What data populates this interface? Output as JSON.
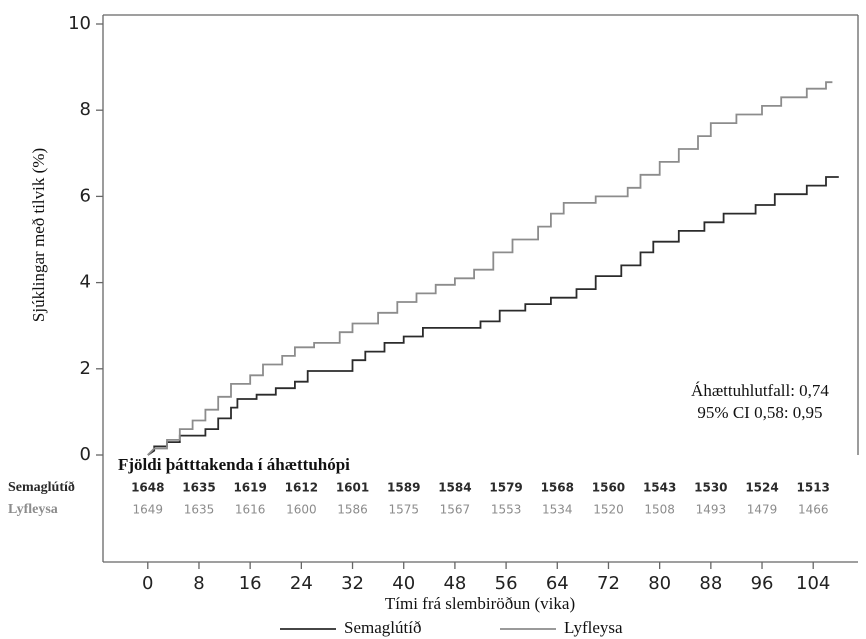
{
  "chart_data": {
    "type": "line",
    "y_label": "Sjúklingar með tilvik (%)",
    "x_label": "Tími frá slembiröðun (vika)",
    "xlim": [
      -7,
      111
    ],
    "ylim": [
      0,
      10
    ],
    "xticks": [
      0,
      8,
      16,
      24,
      32,
      40,
      48,
      56,
      64,
      72,
      80,
      88,
      96,
      104
    ],
    "yticks": [
      0,
      2,
      4,
      6,
      8,
      10
    ],
    "annotations": [
      "Áhættuhlutfall: 0,74",
      "95% CI 0,58: 0,95"
    ],
    "series": [
      {
        "name": "Semaglútíð",
        "color": "#2b2b2b",
        "x": [
          0,
          1,
          1,
          3,
          3,
          5,
          5,
          9,
          9,
          11,
          11,
          13,
          13,
          14,
          14,
          17,
          17,
          20,
          20,
          23,
          23,
          25,
          25,
          32,
          32,
          34,
          34,
          37,
          37,
          40,
          40,
          43,
          43,
          52,
          52,
          55,
          55,
          59,
          59,
          63,
          63,
          67,
          67,
          70,
          70,
          74,
          74,
          77,
          77,
          79,
          79,
          83,
          83,
          87,
          87,
          90,
          90,
          95,
          95,
          98,
          98,
          103,
          103,
          106,
          106,
          108
        ],
        "values": [
          0,
          0.1,
          0.2,
          0.2,
          0.3,
          0.3,
          0.45,
          0.45,
          0.6,
          0.6,
          0.85,
          0.85,
          1.1,
          1.1,
          1.3,
          1.3,
          1.4,
          1.4,
          1.55,
          1.55,
          1.7,
          1.7,
          1.95,
          1.95,
          2.2,
          2.2,
          2.4,
          2.4,
          2.6,
          2.6,
          2.75,
          2.75,
          2.95,
          2.95,
          3.1,
          3.1,
          3.35,
          3.35,
          3.5,
          3.5,
          3.65,
          3.65,
          3.85,
          3.85,
          4.15,
          4.15,
          4.4,
          4.4,
          4.7,
          4.7,
          4.95,
          4.95,
          5.2,
          5.2,
          5.4,
          5.4,
          5.6,
          5.6,
          5.8,
          5.8,
          6.05,
          6.05,
          6.25,
          6.25,
          6.45,
          6.45
        ]
      },
      {
        "name": "Lyfleysa",
        "color": "#8c8c8c",
        "x": [
          0,
          1,
          3,
          3,
          5,
          5,
          7,
          7,
          9,
          9,
          11,
          11,
          13,
          13,
          16,
          16,
          18,
          18,
          21,
          21,
          23,
          23,
          26,
          26,
          30,
          30,
          32,
          32,
          36,
          36,
          39,
          39,
          42,
          42,
          45,
          45,
          48,
          48,
          51,
          51,
          54,
          54,
          57,
          57,
          61,
          61,
          63,
          63,
          65,
          65,
          70,
          70,
          75,
          75,
          77,
          77,
          80,
          80,
          83,
          83,
          86,
          86,
          88,
          88,
          92,
          92,
          96,
          96,
          99,
          99,
          103,
          103,
          106,
          106,
          107
        ],
        "values": [
          0,
          0.15,
          0.15,
          0.35,
          0.35,
          0.6,
          0.6,
          0.8,
          0.8,
          1.05,
          1.05,
          1.35,
          1.35,
          1.65,
          1.65,
          1.85,
          1.85,
          2.1,
          2.1,
          2.3,
          2.3,
          2.5,
          2.5,
          2.6,
          2.6,
          2.85,
          2.85,
          3.05,
          3.05,
          3.3,
          3.3,
          3.55,
          3.55,
          3.75,
          3.75,
          3.95,
          3.95,
          4.1,
          4.1,
          4.3,
          4.3,
          4.7,
          4.7,
          5.0,
          5.0,
          5.3,
          5.3,
          5.6,
          5.6,
          5.85,
          5.85,
          6.0,
          6.0,
          6.2,
          6.2,
          6.5,
          6.5,
          6.8,
          6.8,
          7.1,
          7.1,
          7.4,
          7.4,
          7.7,
          7.7,
          7.9,
          7.9,
          8.1,
          8.1,
          8.3,
          8.3,
          8.5,
          8.5,
          8.65,
          8.65
        ]
      }
    ],
    "risk_table": {
      "title": "Fjöldi þátttakenda í áhættuhópi",
      "rows": [
        {
          "name": "Semaglútíð",
          "values": [
            "1648",
            "1635",
            "1619",
            "1612",
            "1601",
            "1589",
            "1584",
            "1579",
            "1568",
            "1560",
            "1543",
            "1530",
            "1524",
            "1513"
          ]
        },
        {
          "name": "Lyfleysa",
          "values": [
            "1649",
            "1635",
            "1616",
            "1600",
            "1586",
            "1575",
            "1567",
            "1553",
            "1534",
            "1520",
            "1508",
            "1493",
            "1479",
            "1466"
          ]
        }
      ]
    }
  }
}
